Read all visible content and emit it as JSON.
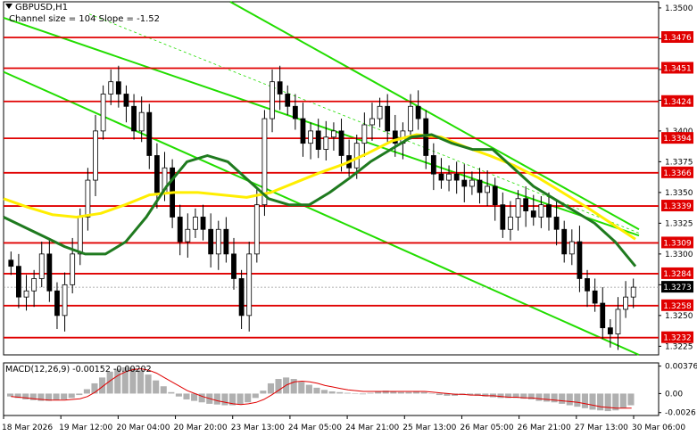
{
  "chart_title": "GBPUSD,H1",
  "channel_info": "Channel size = 104  Slope = -1.52",
  "macd_label": "MACD(12,26,9) -0.00152 -0.00202",
  "chart_data": {
    "type": "candlestick",
    "symbol": "GBPUSD",
    "timeframe": "H1",
    "ylim": [
      1.3218,
      1.3505
    ],
    "price_ticks": [
      "1.3500",
      "1.3475",
      "1.3450",
      "1.3425",
      "1.3400",
      "1.3375",
      "1.3350",
      "1.3325",
      "1.3300",
      "1.3275",
      "1.3250",
      "1.3225"
    ],
    "levels": [
      {
        "label": "1.3476",
        "value": 1.3476
      },
      {
        "label": "1.3451",
        "value": 1.3451
      },
      {
        "label": "1.3424",
        "value": 1.3424
      },
      {
        "label": "1.3394",
        "value": 1.3394
      },
      {
        "label": "1.3366",
        "value": 1.3366
      },
      {
        "label": "1.3339",
        "value": 1.3339
      },
      {
        "label": "1.3309",
        "value": 1.3309
      },
      {
        "label": "1.3284",
        "value": 1.3284
      },
      {
        "label": "1.3258",
        "value": 1.3258
      },
      {
        "label": "1.3232",
        "value": 1.3232
      }
    ],
    "current_price": "1.3273",
    "current_value": 1.3273,
    "x_labels": [
      "18 Mar 2026",
      "19 Mar 12:00",
      "20 Mar 04:00",
      "20 Mar 20:00",
      "23 Mar 13:00",
      "24 Mar 05:00",
      "24 Mar 21:00",
      "25 Mar 13:00",
      "26 Mar 05:00",
      "26 Mar 21:00",
      "27 Mar 13:00",
      "30 Mar 06:00"
    ],
    "closes": [
      1.329,
      1.3265,
      1.327,
      1.328,
      1.33,
      1.327,
      1.325,
      1.3275,
      1.33,
      1.333,
      1.336,
      1.34,
      1.343,
      1.344,
      1.343,
      1.342,
      1.34,
      1.3415,
      1.338,
      1.335,
      1.337,
      1.333,
      1.331,
      1.332,
      1.333,
      1.332,
      1.33,
      1.332,
      1.33,
      1.328,
      1.325,
      1.33,
      1.334,
      1.341,
      1.344,
      1.343,
      1.342,
      1.341,
      1.339,
      1.34,
      1.3385,
      1.3395,
      1.34,
      1.338,
      1.337,
      1.339,
      1.3405,
      1.341,
      1.342,
      1.34,
      1.339,
      1.34,
      1.342,
      1.341,
      1.338,
      1.3365,
      1.336,
      1.3365,
      1.336,
      1.3355,
      1.336,
      1.335,
      1.3355,
      1.334,
      1.332,
      1.333,
      1.3345,
      1.3335,
      1.333,
      1.334,
      1.333,
      1.332,
      1.33,
      1.331,
      1.328,
      1.327,
      1.326,
      1.324,
      1.3235,
      1.3255,
      1.3265,
      1.3273
    ],
    "ma_fast": [
      1.333,
      1.3322,
      1.3314,
      1.3306,
      1.33,
      1.33,
      1.331,
      1.333,
      1.3355,
      1.3375,
      1.338,
      1.3375,
      1.336,
      1.3345,
      1.334,
      1.334,
      1.335,
      1.3362,
      1.3375,
      1.3385,
      1.3395,
      1.3397,
      1.339,
      1.3385,
      1.3385,
      1.337,
      1.3355,
      1.3345,
      1.3335,
      1.3325,
      1.331,
      1.329
    ],
    "ma_slow": [
      1.3345,
      1.3338,
      1.3332,
      1.333,
      1.3333,
      1.334,
      1.3348,
      1.335,
      1.335,
      1.3348,
      1.3346,
      1.335,
      1.3358,
      1.3366,
      1.3373,
      1.3382,
      1.3392,
      1.3397,
      1.3395,
      1.3387,
      1.338,
      1.3372,
      1.3362,
      1.335,
      1.3338,
      1.3325,
      1.3312
    ],
    "channel_color": "#22dd00",
    "level_color": "#e00000",
    "ma_fast_color": "#1f7a1f",
    "ma_slow_color": "#ffee00",
    "candle_color": "#000000",
    "macd": {
      "ticks": [
        "0.00376",
        "0.00",
        "-0.0026"
      ],
      "ylim": [
        -0.003,
        0.0042
      ],
      "histogram": [
        -0.0004,
        -0.0006,
        -0.0008,
        -0.0009,
        -0.001,
        -0.001,
        -0.0009,
        -0.0008,
        -0.0006,
        -0.0002,
        0.0006,
        0.0014,
        0.0022,
        0.003,
        0.0034,
        0.0036,
        0.0035,
        0.0032,
        0.0026,
        0.0018,
        0.001,
        0.0002,
        -0.0004,
        -0.0008,
        -0.001,
        -0.0012,
        -0.0014,
        -0.0015,
        -0.0016,
        -0.0016,
        -0.0015,
        -0.0012,
        -0.0006,
        0.0004,
        0.0014,
        0.002,
        0.0022,
        0.002,
        0.0016,
        0.0012,
        0.0008,
        0.0005,
        0.0003,
        0.0002,
        0.0001,
        0.0,
        -0.0001,
        0.0001,
        0.0003,
        0.0004,
        0.0003,
        0.0002,
        0.0002,
        0.0003,
        0.0002,
        0.0,
        -0.0002,
        -0.0003,
        -0.0003,
        -0.0002,
        -0.0002,
        -0.0003,
        -0.0004,
        -0.0005,
        -0.0006,
        -0.0006,
        -0.0006,
        -0.0007,
        -0.0008,
        -0.001,
        -0.0011,
        -0.0012,
        -0.0014,
        -0.0016,
        -0.0018,
        -0.002,
        -0.0022,
        -0.0023,
        -0.0024,
        -0.0023,
        -0.002,
        -0.0016
      ],
      "signal": [
        -0.0004,
        -0.0005,
        -0.0006,
        -0.0007,
        -0.0008,
        -0.0009,
        -0.0009,
        -0.0009,
        -0.0008,
        -0.0007,
        -0.0004,
        0.0002,
        0.001,
        0.0018,
        0.0025,
        0.003,
        0.0033,
        0.0034,
        0.0032,
        0.0028,
        0.0022,
        0.0016,
        0.001,
        0.0004,
        0.0,
        -0.0004,
        -0.0007,
        -0.001,
        -0.0012,
        -0.0014,
        -0.0015,
        -0.0014,
        -0.0012,
        -0.0008,
        -0.0002,
        0.0005,
        0.0012,
        0.0016,
        0.0017,
        0.0016,
        0.0014,
        0.0011,
        0.0009,
        0.0007,
        0.0005,
        0.0004,
        0.0003,
        0.0003,
        0.0003,
        0.0003,
        0.0003,
        0.0003,
        0.0003,
        0.0003,
        0.0003,
        0.0002,
        0.0001,
        0.0,
        -0.0001,
        -0.0001,
        -0.0002,
        -0.0002,
        -0.0003,
        -0.0003,
        -0.0004,
        -0.0005,
        -0.0005,
        -0.0006,
        -0.0006,
        -0.0007,
        -0.0008,
        -0.0009,
        -0.001,
        -0.0011,
        -0.0012,
        -0.0014,
        -0.0016,
        -0.0018,
        -0.0019,
        -0.002,
        -0.002,
        -0.002
      ]
    }
  }
}
